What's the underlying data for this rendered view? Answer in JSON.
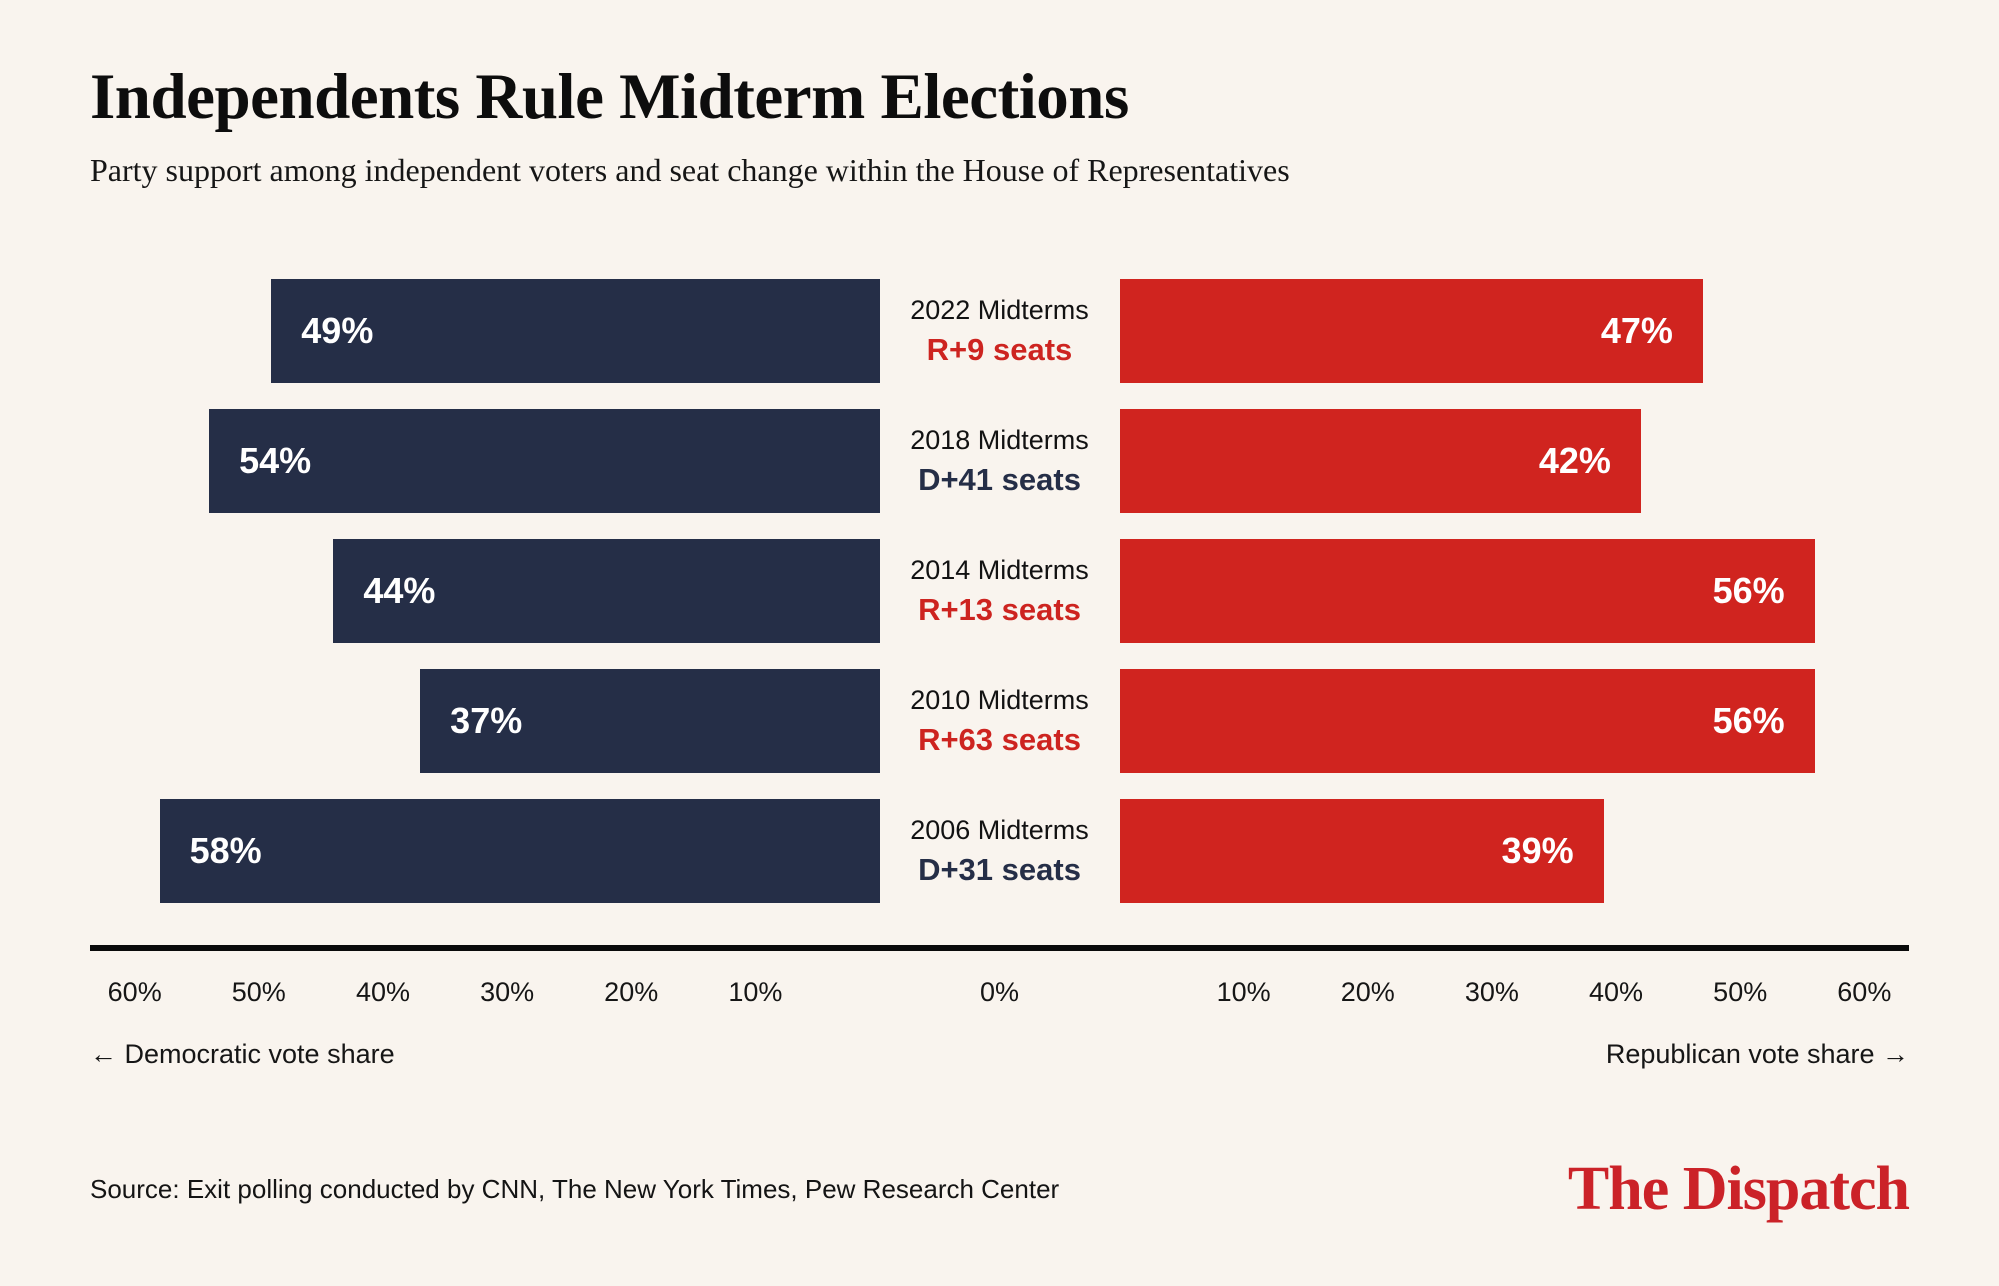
{
  "header": {
    "title": "Independents Rule Midterm Elections",
    "subtitle": "Party support among independent voters and seat change within the House of Representatives"
  },
  "chart_data": {
    "type": "bar",
    "variant": "diverging-horizontal",
    "title": "Independents Rule Midterm Elections",
    "subtitle": "Party support among independent voters and seat change within the House of Representatives",
    "rows": [
      {
        "year_label": "2022 Midterms",
        "seat_change": "R+9 seats",
        "seat_party": "R",
        "dem": 49,
        "rep": 47
      },
      {
        "year_label": "2018 Midterms",
        "seat_change": "D+41 seats",
        "seat_party": "D",
        "dem": 54,
        "rep": 42
      },
      {
        "year_label": "2014 Midterms",
        "seat_change": "R+13 seats",
        "seat_party": "R",
        "dem": 44,
        "rep": 56
      },
      {
        "year_label": "2010 Midterms",
        "seat_change": "R+63 seats",
        "seat_party": "R",
        "dem": 37,
        "rep": 56
      },
      {
        "year_label": "2006 Midterms",
        "seat_change": "D+31 seats",
        "seat_party": "D",
        "dem": 58,
        "rep": 39
      }
    ],
    "value_suffix": "%",
    "axis": {
      "side_max": 63.6,
      "tick_values": [
        10,
        20,
        30,
        40,
        50,
        60
      ],
      "tick_suffix": "%",
      "zero_label": "0%"
    },
    "axis_labels": {
      "left": "← Democratic vote share",
      "right": "Republican vote share →"
    },
    "legend_position": "none",
    "grid": false,
    "colors": {
      "dem": "#252e47",
      "rep": "#d0241f",
      "background": "#f9f4ee"
    }
  },
  "footer": {
    "source": "Source: Exit polling conducted by CNN, The New York Times, Pew Research Center",
    "brand": "The Dispatch"
  }
}
